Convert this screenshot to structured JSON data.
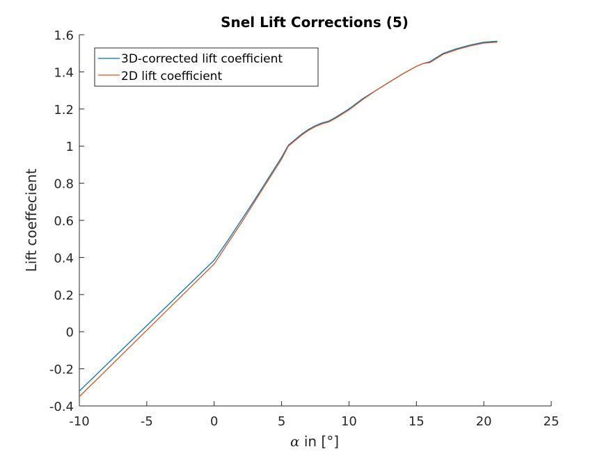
{
  "chart_data": {
    "type": "line",
    "title": "Snel Lift Corrections (5)",
    "xlabel_symbol": "α",
    "xlabel_text": " in [°]",
    "ylabel": "Lift coeffecient",
    "xlim": [
      -10,
      25
    ],
    "ylim": [
      -0.4,
      1.6
    ],
    "xticks": [
      -10,
      -5,
      0,
      5,
      10,
      15,
      20,
      25
    ],
    "yticks": [
      -0.4,
      -0.2,
      0,
      0.2,
      0.4,
      0.6,
      0.8,
      1,
      1.2,
      1.4,
      1.6
    ],
    "grid": false,
    "legend_position": "top-left",
    "series": [
      {
        "name": "3D-corrected lift coefficient",
        "color": "#0072BD",
        "x": [
          -10,
          0,
          1,
          2,
          3,
          4,
          5,
          5.5,
          6,
          6.5,
          7,
          7.5,
          8,
          8.5,
          9,
          10,
          11,
          12,
          13,
          14,
          15,
          15.5,
          16,
          17,
          18,
          19,
          20,
          21
        ],
        "y": [
          -0.32,
          0.385,
          0.49,
          0.6,
          0.71,
          0.825,
          0.94,
          1.005,
          1.035,
          1.065,
          1.09,
          1.11,
          1.125,
          1.135,
          1.155,
          1.2,
          1.255,
          1.3,
          1.345,
          1.39,
          1.43,
          1.445,
          1.455,
          1.5,
          1.525,
          1.545,
          1.56,
          1.565
        ]
      },
      {
        "name": "2D lift coefficient",
        "color": "#D95319",
        "x": [
          -10,
          0,
          1,
          2,
          3,
          4,
          5,
          5.5,
          6,
          6.5,
          7,
          7.5,
          8,
          8.5,
          9,
          10,
          11,
          12,
          13,
          14,
          15,
          15.5,
          16,
          17,
          18,
          19,
          20,
          21
        ],
        "y": [
          -0.35,
          0.365,
          0.475,
          0.585,
          0.7,
          0.815,
          0.93,
          1.0,
          1.03,
          1.06,
          1.085,
          1.105,
          1.12,
          1.13,
          1.15,
          1.195,
          1.25,
          1.3,
          1.345,
          1.39,
          1.43,
          1.445,
          1.45,
          1.495,
          1.52,
          1.54,
          1.555,
          1.56
        ]
      }
    ]
  }
}
